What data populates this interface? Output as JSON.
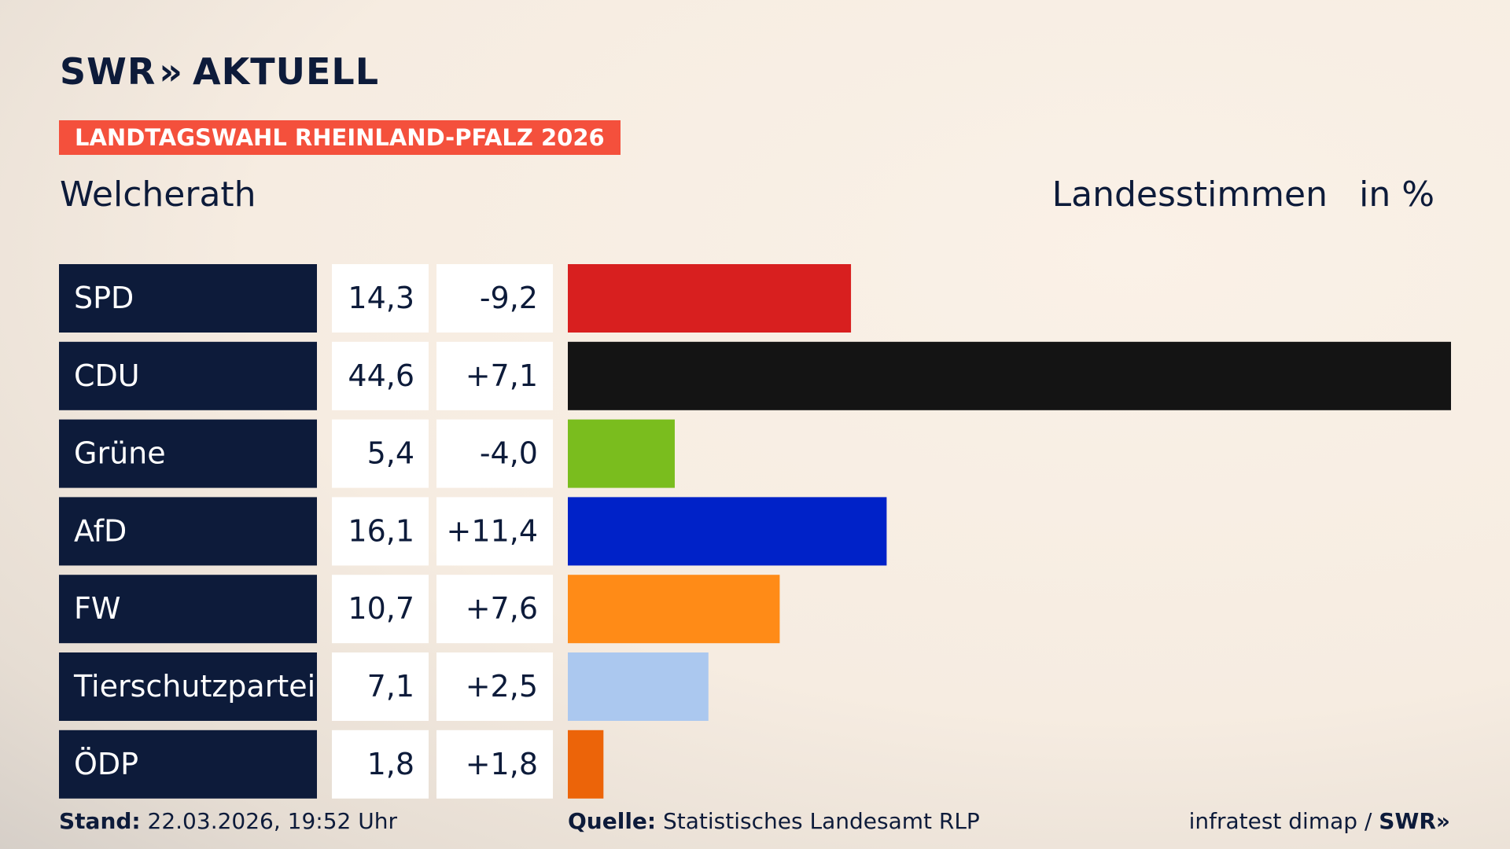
{
  "logo": {
    "brand": "SWR",
    "section": "AKTUELL"
  },
  "header": {
    "banner": "LANDTAGSWAHL RHEINLAND-PFALZ 2026",
    "place": "Welcherath",
    "measure": "Landesstimmen",
    "unit": "in %"
  },
  "chart_data": {
    "type": "bar",
    "orientation": "horizontal",
    "categories": [
      "SPD",
      "CDU",
      "Grüne",
      "AfD",
      "FW",
      "Tierschutzpartei",
      "ÖDP"
    ],
    "values": [
      14.3,
      44.6,
      5.4,
      16.1,
      10.7,
      7.1,
      1.8
    ],
    "value_labels": [
      "14,3",
      "44,6",
      "5,4",
      "16,1",
      "10,7",
      "7,1",
      "1,8"
    ],
    "changes": [
      -9.2,
      7.1,
      -4.0,
      11.4,
      7.6,
      2.5,
      1.8
    ],
    "change_labels": [
      "-9,2",
      "+7,1",
      "-4,0",
      "+11,4",
      "+7,6",
      "+2,5",
      "+1,8"
    ],
    "colors": [
      "#d81f1f",
      "#141414",
      "#7abd1e",
      "#0022c8",
      "#ff8b17",
      "#abc8ef",
      "#ec6409"
    ],
    "xlim": [
      0,
      44.6
    ]
  },
  "footer": {
    "stand_label": "Stand:",
    "stand": "22.03.2026, 19:52 Uhr",
    "source_label": "Quelle:",
    "source": "Statistisches Landesamt RLP",
    "credit": "infratest dimap / ",
    "credit_brand": "SWR"
  }
}
